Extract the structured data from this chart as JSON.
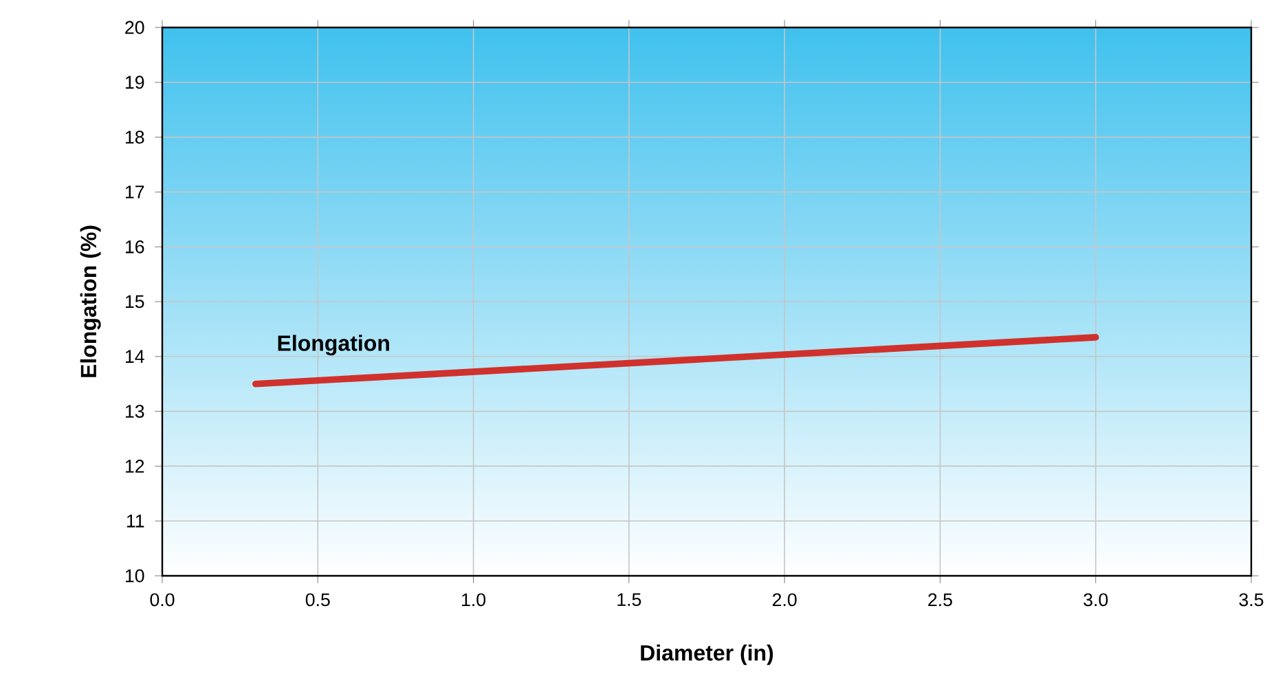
{
  "chart_data": {
    "type": "line",
    "xlabel": "Diameter (in)",
    "ylabel": "Elongation (%)",
    "xlim": [
      0,
      3.5
    ],
    "ylim": [
      10,
      20
    ],
    "xticks": [
      {
        "value": 0,
        "label": "0.0"
      },
      0.5,
      {
        "value": 1,
        "label": "1.0"
      },
      1.5,
      {
        "value": 2,
        "label": "2.0"
      },
      2.5,
      {
        "value": 3,
        "label": "3.0"
      },
      3.5
    ],
    "yticks": [
      10,
      11,
      12,
      13,
      14,
      15,
      16,
      17,
      18,
      19,
      20
    ],
    "grid": true,
    "legend": false,
    "marker": "none",
    "line_style": "solid",
    "series": [
      {
        "name": "Elongation",
        "color": "#d0312d",
        "x": [
          0.3,
          3.0
        ],
        "values": [
          13.5,
          14.35
        ]
      }
    ]
  }
}
